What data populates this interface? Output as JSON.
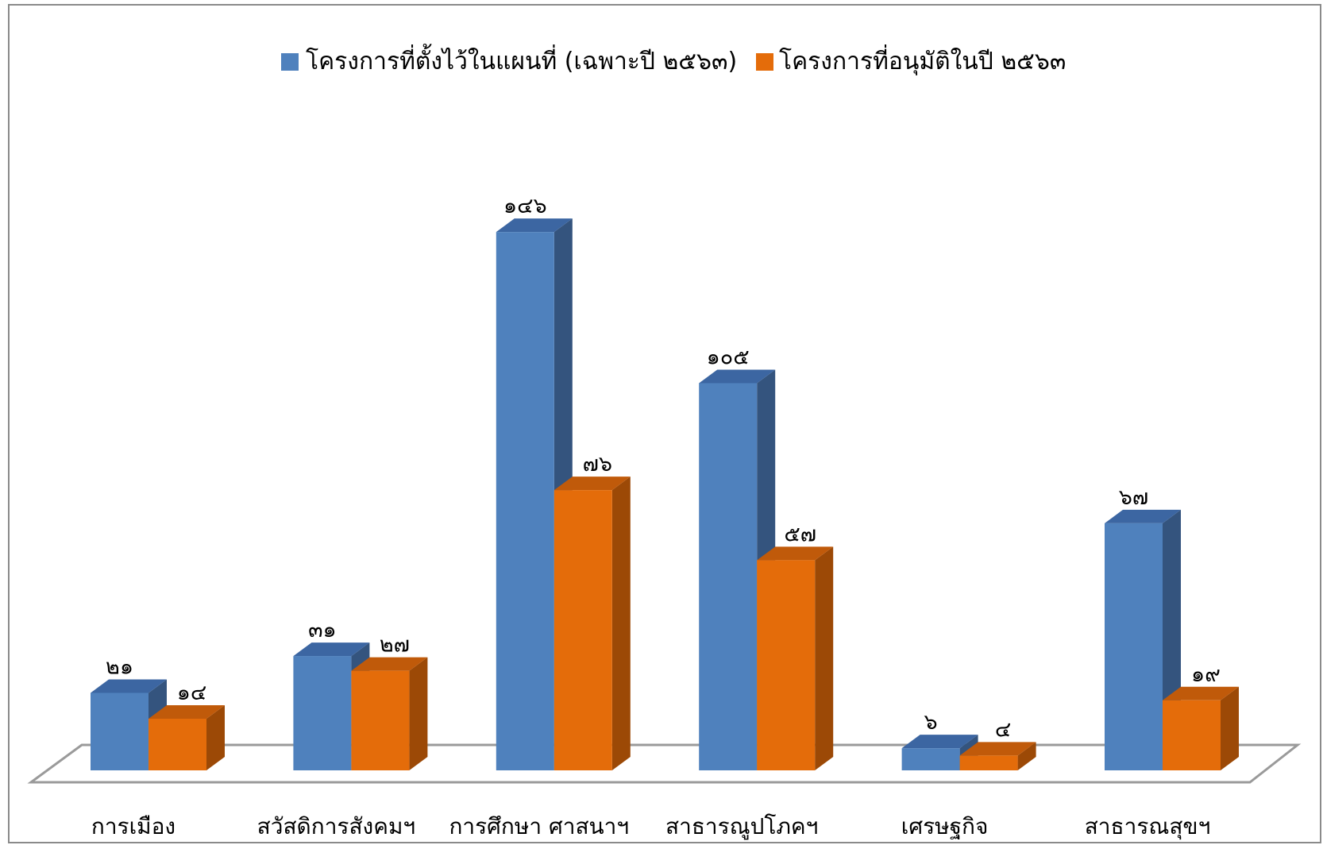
{
  "chart_data": {
    "type": "bar",
    "style": "3d-clustered-column",
    "categories": [
      "การเมือง",
      "สวัสดิการสังคมฯ",
      "การศึกษา ศาสนาฯ",
      "สาธารณูปโภคฯ",
      "เศรษฐกิจ",
      "สาธารณสุขฯ"
    ],
    "series": [
      {
        "name": "โครงการที่ตั้งไว้ในแผนที่ (เฉพาะปี ๒๕๖๓)",
        "values": [
          21,
          31,
          146,
          105,
          6,
          67
        ],
        "labels": [
          "๒๑",
          "๓๑",
          "๑๔๖",
          "๑๐๕",
          "๖",
          "๖๗"
        ],
        "color": "#4F81BD",
        "side_color": "#34547E",
        "top_color": "#3C66A2"
      },
      {
        "name": "โครงการที่อนุมัติในปี ๒๕๖๓",
        "values": [
          14,
          27,
          76,
          57,
          4,
          19
        ],
        "labels": [
          "๑๔",
          "๒๗",
          "๗๖",
          "๕๗",
          "๔",
          "๑๙"
        ],
        "color": "#E46C0A",
        "side_color": "#9C4906",
        "top_color": "#C05A0A"
      }
    ],
    "legend_position": "top",
    "grid": false,
    "value_axis_visible": false
  }
}
